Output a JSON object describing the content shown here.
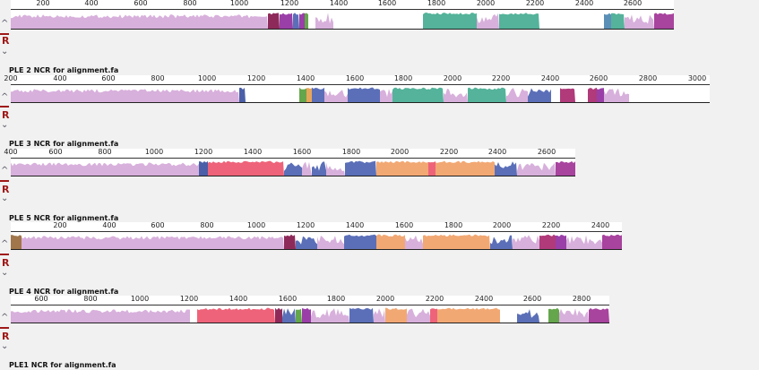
{
  "tracks": [
    {
      "label": "",
      "ruler_start": 200,
      "ruler_end": 2700,
      "ticks": [
        "200",
        "400",
        "600",
        "800",
        "1000",
        "1200",
        "1400",
        "1600",
        "1800",
        "2000",
        "2200",
        "2400",
        "2600"
      ],
      "blocks": [
        {
          "color": "#d8b0dc",
          "from": 0,
          "to": 287,
          "profile": "hill"
        },
        {
          "color": "#8e2a5a",
          "from": 287,
          "to": 300,
          "profile": "full"
        },
        {
          "color": "#9a3fa8",
          "from": 300,
          "to": 315,
          "profile": "full"
        },
        {
          "color": "#5b6fb8",
          "from": 315,
          "to": 322,
          "profile": "full"
        },
        {
          "color": "#9a3fa8",
          "from": 322,
          "to": 328,
          "profile": "full"
        },
        {
          "color": "#65a64c",
          "from": 328,
          "to": 332,
          "profile": "full"
        },
        {
          "color": "#d8b0dc",
          "from": 340,
          "to": 360,
          "profile": "jag"
        },
        {
          "color": "#54b39a",
          "from": 460,
          "to": 520,
          "profile": "full"
        },
        {
          "color": "#d8b0dc",
          "from": 520,
          "to": 545,
          "profile": "jag"
        },
        {
          "color": "#54b39a",
          "from": 545,
          "to": 590,
          "profile": "full"
        },
        {
          "color": "#5b8fb8",
          "from": 662,
          "to": 670,
          "profile": "full"
        },
        {
          "color": "#54b39a",
          "from": 670,
          "to": 685,
          "profile": "full"
        },
        {
          "color": "#d8b0dc",
          "from": 685,
          "to": 718,
          "profile": "jag"
        },
        {
          "color": "#a8439e",
          "from": 718,
          "to": 740,
          "profile": "full"
        }
      ],
      "name": ""
    },
    {
      "label": "PLE 2 NCR for alignment.fa",
      "ruler_start": 200,
      "ruler_end": 3000,
      "ticks": [
        "200",
        "400",
        "600",
        "800",
        "1000",
        "1200",
        "1400",
        "1600",
        "1800",
        "2000",
        "2200",
        "2400",
        "2600",
        "2800",
        "3000"
      ],
      "blocks": [
        {
          "color": "#d8b0dc",
          "from": 0,
          "to": 255,
          "profile": "hill"
        },
        {
          "color": "#4a5fa8",
          "from": 255,
          "to": 262,
          "profile": "full"
        },
        {
          "color": "#65a64c",
          "from": 322,
          "to": 330,
          "profile": "full"
        },
        {
          "color": "#e8a65a",
          "from": 330,
          "to": 336,
          "profile": "full"
        },
        {
          "color": "#5b6fb8",
          "from": 336,
          "to": 350,
          "profile": "full"
        },
        {
          "color": "#d8b0dc",
          "from": 350,
          "to": 376,
          "profile": "jag"
        },
        {
          "color": "#5b6fb8",
          "from": 376,
          "to": 412,
          "profile": "full"
        },
        {
          "color": "#d8b0dc",
          "from": 412,
          "to": 426,
          "profile": "jag"
        },
        {
          "color": "#54b39a",
          "from": 426,
          "to": 483,
          "profile": "full"
        },
        {
          "color": "#d8b0dc",
          "from": 483,
          "to": 510,
          "profile": "jag"
        },
        {
          "color": "#54b39a",
          "from": 510,
          "to": 553,
          "profile": "full"
        },
        {
          "color": "#d8b0dc",
          "from": 553,
          "to": 577,
          "profile": "jag"
        },
        {
          "color": "#5b6fb8",
          "from": 577,
          "to": 603,
          "profile": "jag"
        },
        {
          "color": "#b03a7a",
          "from": 613,
          "to": 630,
          "profile": "full"
        },
        {
          "color": "#b03a7a",
          "from": 644,
          "to": 654,
          "profile": "full"
        },
        {
          "color": "#9a3fa8",
          "from": 654,
          "to": 662,
          "profile": "full"
        },
        {
          "color": "#d8b0dc",
          "from": 662,
          "to": 690,
          "profile": "jag"
        }
      ]
    },
    {
      "label": "PLE 3 NCR for alignment.fa",
      "ruler_start": 400,
      "ruler_end": 2600,
      "ticks": [
        "400",
        "600",
        "800",
        "1000",
        "1200",
        "1400",
        "1600",
        "1800",
        "2000",
        "2200",
        "2400",
        "2600"
      ],
      "blocks": [
        {
          "color": "#d8b0dc",
          "from": 0,
          "to": 210,
          "profile": "hill"
        },
        {
          "color": "#4a5fa8",
          "from": 210,
          "to": 220,
          "profile": "full"
        },
        {
          "color": "#ee6379",
          "from": 220,
          "to": 305,
          "profile": "full"
        },
        {
          "color": "#5b6fb8",
          "from": 305,
          "to": 325,
          "profile": "jag"
        },
        {
          "color": "#d8b0dc",
          "from": 325,
          "to": 336,
          "profile": "jag"
        },
        {
          "color": "#5b6fb8",
          "from": 336,
          "to": 352,
          "profile": "jag"
        },
        {
          "color": "#d8b0dc",
          "from": 352,
          "to": 373,
          "profile": "jag"
        },
        {
          "color": "#5b6fb8",
          "from": 373,
          "to": 408,
          "profile": "full"
        },
        {
          "color": "#f2a873",
          "from": 408,
          "to": 466,
          "profile": "full"
        },
        {
          "color": "#ee6379",
          "from": 466,
          "to": 474,
          "profile": "full"
        },
        {
          "color": "#f2a873",
          "from": 474,
          "to": 540,
          "profile": "full"
        },
        {
          "color": "#5b6fb8",
          "from": 540,
          "to": 565,
          "profile": "jag"
        },
        {
          "color": "#d8b0dc",
          "from": 565,
          "to": 608,
          "profile": "jag"
        },
        {
          "color": "#a8439e",
          "from": 608,
          "to": 630,
          "profile": "full"
        }
      ]
    },
    {
      "label": "PLE 5 NCR for alignment.fa",
      "ruler_start": 200,
      "ruler_end": 2400,
      "ticks": [
        "200",
        "400",
        "600",
        "800",
        "1000",
        "1200",
        "1400",
        "1600",
        "1800",
        "2000",
        "2200",
        "2400"
      ],
      "blocks": [
        {
          "color": "#a0764a",
          "from": 0,
          "to": 12,
          "profile": "full"
        },
        {
          "color": "#d8b0dc",
          "from": 12,
          "to": 305,
          "profile": "hill"
        },
        {
          "color": "#8e2a5a",
          "from": 305,
          "to": 318,
          "profile": "full"
        },
        {
          "color": "#5b6fb8",
          "from": 318,
          "to": 342,
          "profile": "jag"
        },
        {
          "color": "#d8b0dc",
          "from": 342,
          "to": 372,
          "profile": "jag"
        },
        {
          "color": "#5b6fb8",
          "from": 372,
          "to": 408,
          "profile": "full"
        },
        {
          "color": "#f2a873",
          "from": 408,
          "to": 440,
          "profile": "full"
        },
        {
          "color": "#d8b0dc",
          "from": 440,
          "to": 460,
          "profile": "jag"
        },
        {
          "color": "#f2a873",
          "from": 460,
          "to": 535,
          "profile": "full"
        },
        {
          "color": "#5b6fb8",
          "from": 535,
          "to": 560,
          "profile": "jag"
        },
        {
          "color": "#d8b0dc",
          "from": 560,
          "to": 590,
          "profile": "jag"
        },
        {
          "color": "#b03a7a",
          "from": 590,
          "to": 608,
          "profile": "full"
        },
        {
          "color": "#9a3fa8",
          "from": 608,
          "to": 620,
          "profile": "full"
        },
        {
          "color": "#d8b0dc",
          "from": 620,
          "to": 660,
          "profile": "jag"
        },
        {
          "color": "#a8439e",
          "from": 660,
          "to": 682,
          "profile": "full"
        }
      ]
    },
    {
      "label": "PLE 4 NCR for alignment.fa",
      "ruler_start": 600,
      "ruler_end": 2800,
      "ticks": [
        "600",
        "800",
        "1000",
        "1200",
        "1400",
        "1600",
        "1800",
        "2000",
        "2200",
        "2400",
        "2600",
        "2800"
      ],
      "blocks": [
        {
          "color": "#d8b0dc",
          "from": 0,
          "to": 200,
          "profile": "hill"
        },
        {
          "color": "#ee6379",
          "from": 208,
          "to": 295,
          "profile": "full"
        },
        {
          "color": "#8e2a5a",
          "from": 295,
          "to": 303,
          "profile": "full"
        },
        {
          "color": "#5b6fb8",
          "from": 303,
          "to": 318,
          "profile": "jag"
        },
        {
          "color": "#65a64c",
          "from": 318,
          "to": 325,
          "profile": "full"
        },
        {
          "color": "#9a3fa8",
          "from": 325,
          "to": 335,
          "profile": "full"
        },
        {
          "color": "#d8b0dc",
          "from": 335,
          "to": 378,
          "profile": "jag"
        },
        {
          "color": "#5b6fb8",
          "from": 378,
          "to": 405,
          "profile": "full"
        },
        {
          "color": "#d8b0dc",
          "from": 405,
          "to": 418,
          "profile": "jag"
        },
        {
          "color": "#f2a873",
          "from": 418,
          "to": 442,
          "profile": "full"
        },
        {
          "color": "#d8b0dc",
          "from": 442,
          "to": 468,
          "profile": "jag"
        },
        {
          "color": "#ee6379",
          "from": 468,
          "to": 476,
          "profile": "full"
        },
        {
          "color": "#f2a873",
          "from": 476,
          "to": 546,
          "profile": "full"
        },
        {
          "color": "#5b6fb8",
          "from": 565,
          "to": 590,
          "profile": "jag"
        },
        {
          "color": "#65a64c",
          "from": 600,
          "to": 612,
          "profile": "full"
        },
        {
          "color": "#d8b0dc",
          "from": 612,
          "to": 645,
          "profile": "jag"
        },
        {
          "color": "#a8439e",
          "from": 645,
          "to": 668,
          "profile": "full"
        }
      ]
    }
  ],
  "last_label": "PLE1 NCR for alignment.fa",
  "controls": {
    "up": "^",
    "reverse": "R",
    "down": "v"
  }
}
